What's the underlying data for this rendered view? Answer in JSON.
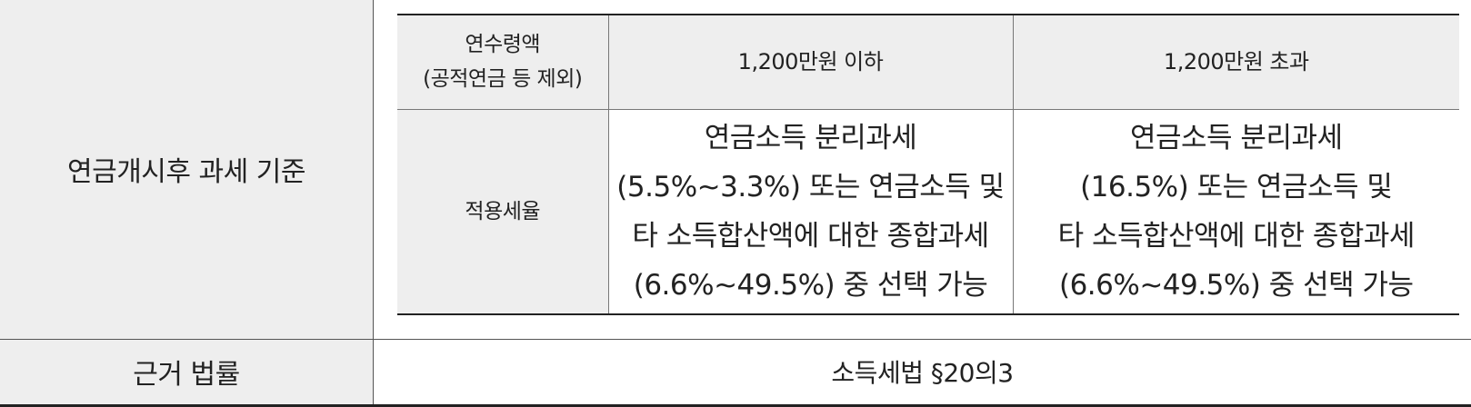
{
  "section": {
    "label": "연금개시후 과세 기준"
  },
  "rate_table": {
    "header": {
      "col1_line1": "연수령액",
      "col1_line2": "(공적연금 등 제외)",
      "col2": "1,200만원 이하",
      "col3": "1,200만원 초과"
    },
    "row": {
      "label": "적용세율",
      "col2_lines": [
        "연금소득 분리과세",
        "(5.5%∼3.3%) 또는 연금소득 및",
        "타 소득합산액에 대한 종합과세",
        "(6.6%∼49.5%) 중 선택 가능"
      ],
      "col3_lines": [
        "연금소득 분리과세",
        "(16.5%) 또는 연금소득 및",
        "타 소득합산액에 대한 종합과세",
        "(6.6%∼49.5%) 중 선택 가능"
      ]
    }
  },
  "law": {
    "label": "근거 법률",
    "value": "소득세법 §20의3"
  }
}
